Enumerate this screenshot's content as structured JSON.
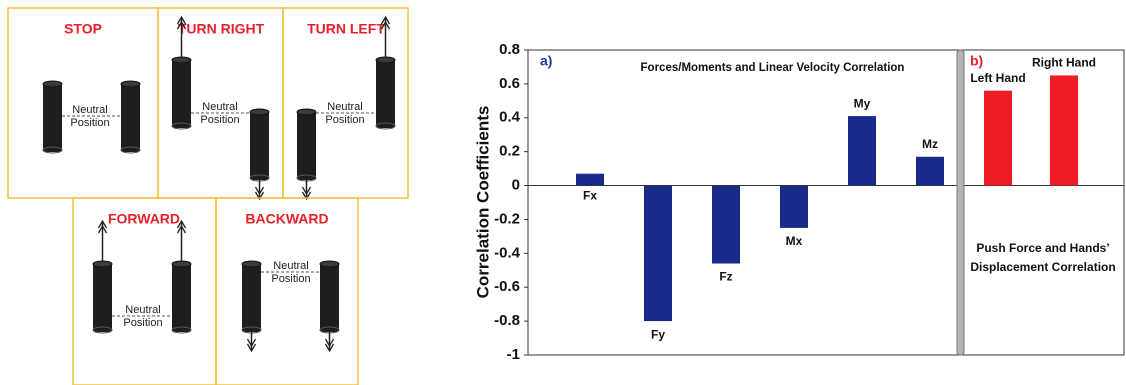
{
  "diagram": {
    "panels": [
      {
        "title": "STOP",
        "label": [
          "Neutral",
          "Position"
        ]
      },
      {
        "title": "TURN RIGHT",
        "label": [
          "Neutral",
          "Position"
        ]
      },
      {
        "title": "TURN LEFT",
        "label": [
          "Neutral",
          "Position"
        ]
      },
      {
        "title": "FORWARD",
        "label": [
          "Neutral",
          "Position"
        ]
      },
      {
        "title": "BACKWARD",
        "label": [
          "Neutral",
          "Position"
        ]
      }
    ]
  },
  "chart_data": {
    "type": "bar",
    "ylabel": "Correlation Coefficients",
    "ylim": [
      -1,
      0.8
    ],
    "yticks": [
      -1,
      -0.8,
      -0.6,
      -0.4,
      -0.2,
      0,
      0.2,
      0.4,
      0.6,
      0.8
    ],
    "panels": [
      {
        "label": "a)",
        "label_color": "#1f3a93",
        "title": "Forces/Moments and Linear Velocity Correlation",
        "categories": [
          "Fx",
          "Fy",
          "Fz",
          "Mx",
          "My",
          "Mz"
        ],
        "values": [
          0.07,
          -0.8,
          -0.46,
          -0.25,
          0.41,
          0.17
        ],
        "color": "#1a2a8a"
      },
      {
        "label": "b)",
        "label_color": "#e8202a",
        "annotation": [
          "Push Force and Hands’",
          "Displacement Correlation"
        ],
        "categories": [
          "Left Hand",
          "Right Hand"
        ],
        "values": [
          0.56,
          0.65
        ],
        "color": "#ee1c25"
      }
    ]
  }
}
